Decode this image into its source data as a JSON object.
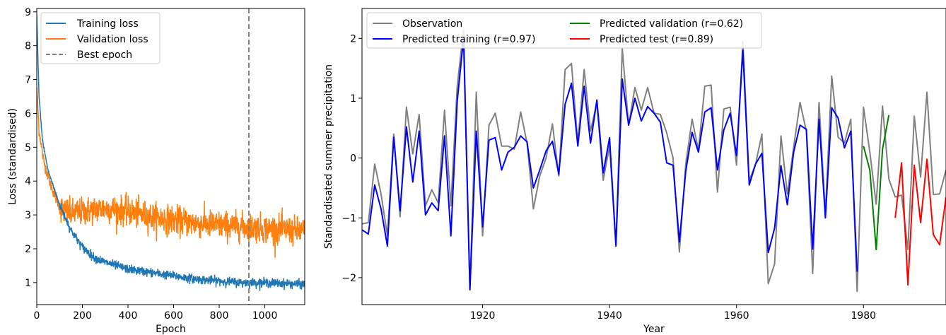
{
  "chart_data": [
    {
      "type": "line",
      "xlabel": "Epoch",
      "ylabel": "Loss (standardised)",
      "xlim": [
        0,
        1175
      ],
      "ylim": [
        0.35,
        9.1
      ],
      "xticks": [
        0,
        200,
        400,
        600,
        800,
        1000
      ],
      "yticks": [
        1,
        2,
        3,
        4,
        5,
        6,
        7,
        8,
        9
      ],
      "grid": false,
      "legend_position": "top-left",
      "best_epoch": 930,
      "series": [
        {
          "name": "Training loss",
          "color": "#1f77b4",
          "approx_points": [
            [
              0,
              8.9
            ],
            [
              10,
              6.5
            ],
            [
              25,
              5.2
            ],
            [
              50,
              4.3
            ],
            [
              80,
              3.7
            ],
            [
              100,
              3.3
            ],
            [
              150,
              2.55
            ],
            [
              200,
              2.05
            ],
            [
              250,
              1.75
            ],
            [
              300,
              1.6
            ],
            [
              400,
              1.4
            ],
            [
              500,
              1.3
            ],
            [
              600,
              1.2
            ],
            [
              700,
              1.1
            ],
            [
              800,
              1.05
            ],
            [
              900,
              1.0
            ],
            [
              1000,
              1.0
            ],
            [
              1100,
              0.97
            ],
            [
              1175,
              0.95
            ]
          ],
          "noise": 0.12
        },
        {
          "name": "Validation loss",
          "color": "#ff7f0e",
          "approx_points": [
            [
              0,
              6.8
            ],
            [
              10,
              5.5
            ],
            [
              30,
              4.6
            ],
            [
              60,
              3.9
            ],
            [
              90,
              3.4
            ],
            [
              110,
              3.15
            ],
            [
              150,
              3.05
            ],
            [
              200,
              3.1
            ],
            [
              300,
              3.2
            ],
            [
              400,
              3.1
            ],
            [
              500,
              2.95
            ],
            [
              600,
              2.85
            ],
            [
              700,
              2.75
            ],
            [
              800,
              2.7
            ],
            [
              900,
              2.65
            ],
            [
              1000,
              2.6
            ],
            [
              1100,
              2.55
            ],
            [
              1175,
              2.5
            ]
          ],
          "noise": 0.38
        },
        {
          "name": "Best epoch",
          "color": "#808080",
          "style": "dashed"
        }
      ]
    },
    {
      "type": "line",
      "xlabel": "Year",
      "ylabel": "Standardisated summer precipitation",
      "xlim": [
        1901,
        1993
      ],
      "ylim": [
        -2.45,
        2.5
      ],
      "xticks": [
        1920,
        1940,
        1960,
        1980
      ],
      "yticks": [
        -2,
        -1,
        0,
        1,
        2
      ],
      "grid": false,
      "legend_position": "top-left",
      "legend_columns": 2,
      "series": [
        {
          "name": "Observation",
          "color": "#808080",
          "x": [
            1901,
            1902,
            1903,
            1904,
            1905,
            1906,
            1907,
            1908,
            1909,
            1910,
            1911,
            1912,
            1913,
            1914,
            1915,
            1916,
            1917,
            1918,
            1919,
            1920,
            1921,
            1922,
            1923,
            1924,
            1925,
            1926,
            1927,
            1928,
            1929,
            1930,
            1931,
            1932,
            1933,
            1934,
            1935,
            1936,
            1937,
            1938,
            1939,
            1940,
            1941,
            1942,
            1943,
            1944,
            1945,
            1946,
            1947,
            1948,
            1949,
            1950,
            1951,
            1952,
            1953,
            1954,
            1955,
            1956,
            1957,
            1958,
            1959,
            1960,
            1961,
            1962,
            1963,
            1964,
            1965,
            1966,
            1967,
            1968,
            1969,
            1970,
            1971,
            1972,
            1973,
            1974,
            1975,
            1976,
            1977,
            1978,
            1979,
            1980,
            1981,
            1982,
            1983,
            1984,
            1985,
            1986,
            1987,
            1988,
            1989,
            1990,
            1991,
            1992,
            1993
          ],
          "y": [
            -1.1,
            -1.08,
            -0.1,
            -0.6,
            -1.3,
            0.4,
            -0.98,
            0.85,
            0.07,
            0.73,
            -0.8,
            -0.53,
            -0.75,
            0.8,
            -0.8,
            1.2,
            2.15,
            -2.2,
            1.1,
            -1.3,
            0.55,
            0.75,
            0.2,
            0.2,
            0.15,
            0.77,
            0.25,
            -0.85,
            -0.3,
            0.0,
            0.57,
            -0.3,
            1.48,
            1.58,
            0.25,
            1.48,
            0.45,
            0.93,
            -0.37,
            0.2,
            -1.45,
            1.83,
            0.55,
            1.18,
            0.8,
            1.18,
            0.75,
            0.73,
            0.42,
            0.0,
            -1.57,
            -0.1,
            0.65,
            0.13,
            1.2,
            1.22,
            -0.57,
            0.82,
            0.85,
            -0.12,
            1.95,
            -0.38,
            -0.1,
            0.4,
            -2.1,
            -1.77,
            0.37,
            -0.6,
            0.18,
            0.93,
            0.45,
            -1.93,
            0.93,
            -0.93,
            1.37,
            0.35,
            0.25,
            0.65,
            -2.23,
            0.85,
            0.1,
            -0.77,
            0.87,
            -0.35,
            -0.65,
            -0.62,
            -1.53,
            0.7,
            -0.32,
            1.1,
            -0.61,
            -0.6,
            -0.2
          ]
        },
        {
          "name": "Predicted training (r=0.97)",
          "color": "#0000ff",
          "x": [
            1901,
            1902,
            1903,
            1904,
            1905,
            1906,
            1907,
            1908,
            1909,
            1910,
            1911,
            1912,
            1913,
            1914,
            1915,
            1916,
            1917,
            1918,
            1919,
            1920,
            1921,
            1922,
            1923,
            1924,
            1925,
            1926,
            1927,
            1928,
            1929,
            1930,
            1931,
            1932,
            1933,
            1934,
            1935,
            1936,
            1937,
            1938,
            1939,
            1940,
            1941,
            1942,
            1943,
            1944,
            1945,
            1946,
            1947,
            1948,
            1949,
            1950,
            1951,
            1952,
            1953,
            1954,
            1955,
            1956,
            1957,
            1958,
            1959,
            1960,
            1961,
            1962,
            1963,
            1964,
            1965,
            1966,
            1967,
            1968,
            1969,
            1970,
            1971,
            1972,
            1973,
            1974,
            1975,
            1976,
            1977,
            1978,
            1979
          ],
          "y": [
            -1.2,
            -1.27,
            -0.45,
            -0.85,
            -1.47,
            0.35,
            -0.88,
            0.52,
            -0.4,
            0.45,
            -0.95,
            -0.75,
            -0.88,
            0.37,
            -1.3,
            0.95,
            2.0,
            -2.2,
            0.45,
            -1.15,
            0.3,
            0.34,
            -0.2,
            0.1,
            0.18,
            0.37,
            0.27,
            -0.5,
            -0.2,
            0.12,
            0.28,
            -0.27,
            0.9,
            1.25,
            0.2,
            1.2,
            0.25,
            0.97,
            -0.25,
            0.34,
            -1.47,
            1.32,
            0.55,
            1.0,
            0.62,
            0.86,
            0.75,
            0.6,
            -0.08,
            -0.12,
            -1.4,
            -0.22,
            0.43,
            0.1,
            0.77,
            0.84,
            -0.2,
            0.47,
            0.75,
            0.04,
            1.8,
            -0.45,
            -0.1,
            0.08,
            -1.58,
            -1.17,
            -0.13,
            -0.78,
            0.1,
            0.55,
            0.48,
            -1.52,
            0.65,
            -1.0,
            0.84,
            0.67,
            0.17,
            0.45,
            -1.9
          ]
        },
        {
          "name": "Predicted validation (r=0.62)",
          "color": "#008000",
          "x": [
            1980,
            1981,
            1982,
            1983,
            1984
          ],
          "y": [
            0.2,
            -0.2,
            -1.53,
            0.15,
            0.72
          ]
        },
        {
          "name": "Predicted test (r=0.89)",
          "color": "#ff0000",
          "x": [
            1985,
            1986,
            1987,
            1988,
            1989,
            1990,
            1991,
            1992,
            1993
          ],
          "y": [
            -1.0,
            -0.08,
            -2.12,
            -0.12,
            -1.08,
            -0.02,
            -1.28,
            -1.45,
            -0.65
          ]
        }
      ]
    }
  ]
}
